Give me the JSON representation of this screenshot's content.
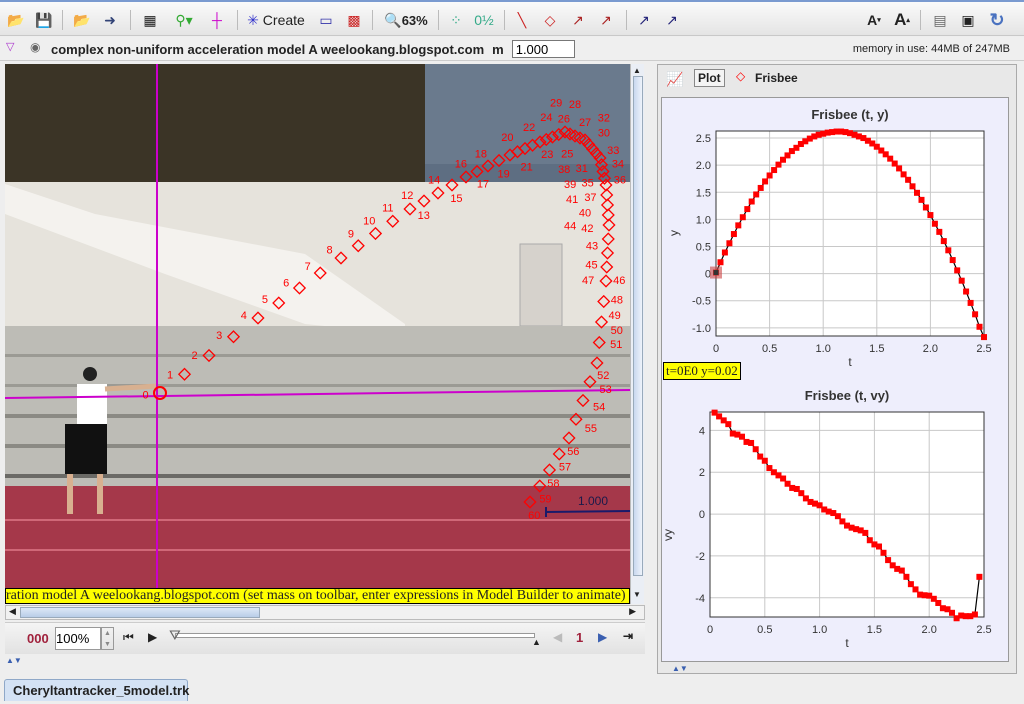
{
  "toolbar": {
    "create_label": "Create",
    "zoom_label": "63%",
    "icons": [
      "open-icon",
      "save-icon",
      "open-video-icon",
      "export-icon",
      "clip-settings-icon",
      "calibration-icon",
      "axes-icon",
      "create-icon",
      "ruler-icon",
      "trail-icon",
      "zoom-icon",
      "mark-points-icon",
      "label-icon",
      "path-icon",
      "position-icon",
      "velocity-icon",
      "acceleration-icon",
      "force-icon",
      "momentum-icon",
      "font-decrease-icon",
      "font-increase-icon",
      "notes-icon",
      "page-icon",
      "refresh-icon"
    ]
  },
  "trackbar": {
    "track_name": "complex non-uniform acceleration model A weelookang.blogspot.com",
    "mass_label": "m",
    "mass_value": "1.000",
    "memory": "memory in use: 44MB of 247MB"
  },
  "video": {
    "calibration_length": "1.000",
    "caption": "ration model A weelookang.blogspot.com (set mass on toolbar, enter expressions in Model Builder to animate)",
    "frame_count": 61
  },
  "player": {
    "frame": "000",
    "rate": "100%",
    "step": "1"
  },
  "right_panel": {
    "tab_plot": "Plot",
    "tab_track": "Frisbee",
    "readout": "t=0E0  y=0.02"
  },
  "file_tab": "Cheryltantracker_5model.trk",
  "colors": {
    "marker": "#ff0000",
    "axes": "#cc00cc",
    "readout_bg": "#ffff00"
  },
  "chart_data": [
    {
      "type": "scatter",
      "title": "Frisbee (t, y)",
      "xlabel": "t",
      "ylabel": "y",
      "xlim": [
        0,
        2.5
      ],
      "ylim": [
        -1.15,
        2.63
      ],
      "xticks": [
        "0",
        "0.5",
        "1.0",
        "1.5",
        "2.0",
        "2.5"
      ],
      "yticks": [
        "-1.0",
        "-0.5",
        "0",
        "0.5",
        "1.0",
        "1.5",
        "2.0",
        "2.5"
      ],
      "grid": true,
      "t": [
        0,
        0.042,
        0.083,
        0.125,
        0.167,
        0.208,
        0.25,
        0.292,
        0.333,
        0.375,
        0.417,
        0.458,
        0.5,
        0.542,
        0.583,
        0.625,
        0.667,
        0.708,
        0.75,
        0.792,
        0.833,
        0.875,
        0.917,
        0.958,
        1.0,
        1.042,
        1.083,
        1.125,
        1.167,
        1.208,
        1.25,
        1.292,
        1.333,
        1.375,
        1.417,
        1.458,
        1.5,
        1.542,
        1.583,
        1.625,
        1.667,
        1.708,
        1.75,
        1.792,
        1.833,
        1.875,
        1.917,
        1.958,
        2.0,
        2.042,
        2.083,
        2.125,
        2.167,
        2.208,
        2.25,
        2.292,
        2.333,
        2.375,
        2.417,
        2.458,
        2.5
      ],
      "y": [
        0.02,
        0.21,
        0.39,
        0.56,
        0.73,
        0.89,
        1.04,
        1.19,
        1.33,
        1.46,
        1.58,
        1.7,
        1.81,
        1.91,
        2.01,
        2.1,
        2.18,
        2.26,
        2.32,
        2.39,
        2.44,
        2.49,
        2.53,
        2.56,
        2.58,
        2.6,
        2.61,
        2.62,
        2.62,
        2.61,
        2.59,
        2.56,
        2.53,
        2.5,
        2.45,
        2.4,
        2.34,
        2.27,
        2.2,
        2.12,
        2.03,
        1.94,
        1.83,
        1.73,
        1.61,
        1.49,
        1.36,
        1.22,
        1.08,
        0.92,
        0.77,
        0.6,
        0.43,
        0.25,
        0.06,
        -0.13,
        -0.33,
        -0.54,
        -0.75,
        -0.98,
        -1.17
      ]
    },
    {
      "type": "scatter",
      "title": "Frisbee (t, vy)",
      "xlabel": "t",
      "ylabel": "vy",
      "xlim": [
        0,
        2.5
      ],
      "ylim": [
        -4.92,
        4.88
      ],
      "xticks": [
        "0",
        "0.5",
        "1.0",
        "1.5",
        "2.0",
        "2.5"
      ],
      "yticks": [
        "-4",
        "-2",
        "0",
        "2",
        "4"
      ],
      "grid": true,
      "t": [
        0.042,
        0.083,
        0.125,
        0.167,
        0.208,
        0.25,
        0.292,
        0.333,
        0.375,
        0.417,
        0.458,
        0.5,
        0.542,
        0.583,
        0.625,
        0.667,
        0.708,
        0.75,
        0.792,
        0.833,
        0.875,
        0.917,
        0.958,
        1.0,
        1.042,
        1.083,
        1.125,
        1.167,
        1.208,
        1.25,
        1.292,
        1.333,
        1.375,
        1.417,
        1.458,
        1.5,
        1.542,
        1.583,
        1.625,
        1.667,
        1.708,
        1.75,
        1.792,
        1.833,
        1.875,
        1.917,
        1.958,
        2.0,
        2.042,
        2.083,
        2.125,
        2.167,
        2.208,
        2.25,
        2.292,
        2.333,
        2.375,
        2.417,
        2.458
      ],
      "vy": [
        4.85,
        4.67,
        4.48,
        4.3,
        3.85,
        3.8,
        3.7,
        3.45,
        3.4,
        3.1,
        2.75,
        2.55,
        2.2,
        2.0,
        1.85,
        1.7,
        1.45,
        1.25,
        1.2,
        1.0,
        0.75,
        0.58,
        0.5,
        0.42,
        0.22,
        0.12,
        0.05,
        -0.1,
        -0.35,
        -0.55,
        -0.65,
        -0.72,
        -0.78,
        -0.9,
        -1.25,
        -1.45,
        -1.55,
        -1.85,
        -2.2,
        -2.45,
        -2.62,
        -2.7,
        -3.0,
        -3.35,
        -3.6,
        -3.85,
        -3.88,
        -3.9,
        -4.05,
        -4.25,
        -4.5,
        -4.55,
        -4.72,
        -4.98,
        -4.85,
        -4.88,
        -4.88,
        -4.8,
        -3.0
      ]
    }
  ]
}
